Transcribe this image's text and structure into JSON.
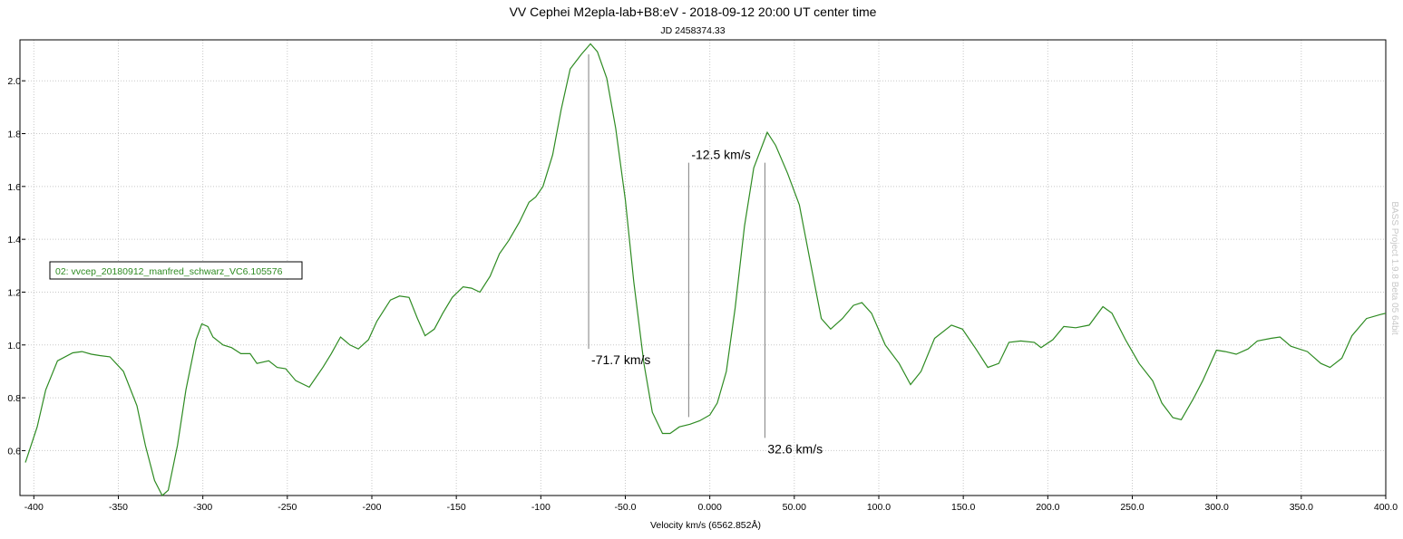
{
  "chart_data": {
    "type": "line",
    "title": "VV Cephei M2epla-lab+B8:eV - 2018-09-12 20:00 UT center time",
    "subtitle": "JD 2458374.33",
    "x_label": "Velocity km/s (6562.852Å)",
    "watermark": "BASS Project 1.9.8 Beta 05 64bit",
    "xlim": [
      -405,
      400
    ],
    "ylim": [
      0.43,
      2.155
    ],
    "xticks": [
      -400,
      -350,
      -300,
      -250,
      -200,
      -150,
      -100,
      {
        "value": -50,
        "label": "-50.0"
      },
      {
        "value": 0,
        "label": "0.000"
      },
      {
        "value": 50,
        "label": "50.00"
      },
      {
        "value": 100,
        "label": "100.0"
      },
      {
        "value": 150,
        "label": "150.0"
      },
      {
        "value": 200,
        "label": "200.0"
      },
      {
        "value": 250,
        "label": "250.0"
      },
      {
        "value": 300,
        "label": "300.0"
      },
      {
        "value": 350,
        "label": "350.0"
      },
      {
        "value": 400,
        "label": "400.0"
      }
    ],
    "yticks": [
      0.6,
      0.8,
      {
        "value": 1.0,
        "label": "1.0"
      },
      1.2,
      1.4,
      1.6,
      1.8,
      {
        "value": 2.0,
        "label": "2.0"
      }
    ],
    "grid": true,
    "legend": "left",
    "x": [
      -405,
      -398,
      -393,
      -386,
      -377,
      -371.5,
      -366,
      -361,
      -355,
      -347,
      -339,
      -334,
      -328.6,
      -324,
      -320.5,
      -315,
      -310,
      -304,
      -300.6,
      -297,
      -294,
      -288,
      -283,
      -277.5,
      -272,
      -268,
      -261,
      -256,
      -251,
      -245,
      -237,
      -229,
      -224,
      -218.5,
      -213,
      -208,
      -202,
      -197,
      -189,
      -183.6,
      -178,
      -173,
      -168.5,
      -163,
      -158,
      -152.4,
      -146,
      -141,
      -136,
      -130,
      -124.5,
      -119,
      -112.7,
      -107,
      -103,
      -98.7,
      -93,
      -88,
      -82.6,
      -76,
      -70.6,
      -66.5,
      -61,
      -55.7,
      -50,
      -45,
      -39,
      -34,
      -28,
      -23.5,
      -18,
      -11.7,
      -6,
      0,
      4.4,
      9.8,
      15,
      20.5,
      26,
      34,
      39,
      46,
      53,
      59,
      66,
      71.5,
      78.5,
      85,
      90,
      95.7,
      103.8,
      112,
      118.8,
      125,
      133,
      143,
      149.5,
      157.5,
      164.5,
      171,
      177,
      184,
      192,
      196,
      203,
      209.5,
      216.5,
      224.5,
      232.6,
      238,
      246,
      254,
      262,
      267.5,
      274,
      279,
      286,
      291.7,
      299.8,
      305,
      311.5,
      318.5,
      324,
      332,
      337.4,
      343.8,
      353.6,
      361.6,
      367,
      374,
      380,
      388.6,
      396.6,
      400
    ],
    "series": [
      {
        "name": "02: vvcep_20180912_manfred_schwarz_VC6.105576",
        "color": "#2e8b22",
        "values": [
          0.555,
          0.69,
          0.83,
          0.94,
          0.97,
          0.975,
          0.965,
          0.96,
          0.955,
          0.9,
          0.77,
          0.62,
          0.487,
          0.43,
          0.45,
          0.62,
          0.83,
          1.02,
          1.08,
          1.07,
          1.03,
          1.0,
          0.99,
          0.967,
          0.967,
          0.93,
          0.94,
          0.915,
          0.91,
          0.865,
          0.84,
          0.915,
          0.967,
          1.03,
          1.0,
          0.985,
          1.02,
          1.09,
          1.17,
          1.185,
          1.18,
          1.1,
          1.035,
          1.06,
          1.12,
          1.18,
          1.22,
          1.215,
          1.2,
          1.26,
          1.345,
          1.395,
          1.465,
          1.54,
          1.56,
          1.6,
          1.72,
          1.89,
          2.045,
          2.1,
          2.14,
          2.11,
          2.01,
          1.82,
          1.55,
          1.24,
          0.93,
          0.745,
          0.665,
          0.665,
          0.69,
          0.7,
          0.713,
          0.735,
          0.78,
          0.9,
          1.14,
          1.45,
          1.67,
          1.805,
          1.755,
          1.65,
          1.53,
          1.33,
          1.1,
          1.06,
          1.1,
          1.15,
          1.16,
          1.12,
          1.0,
          0.93,
          0.85,
          0.9,
          1.025,
          1.075,
          1.06,
          0.985,
          0.915,
          0.93,
          1.01,
          1.015,
          1.01,
          0.99,
          1.02,
          1.07,
          1.065,
          1.075,
          1.145,
          1.12,
          1.02,
          0.93,
          0.865,
          0.78,
          0.725,
          0.717,
          0.795,
          0.865,
          0.98,
          0.975,
          0.965,
          0.985,
          1.015,
          1.025,
          1.03,
          0.995,
          0.975,
          0.93,
          0.915,
          0.95,
          1.035,
          1.1,
          1.115,
          1.12
        ]
      }
    ],
    "annotations": [
      {
        "text": "-71.7 km/s",
        "x": -71.7,
        "y_range": [
          2.1,
          0.985
        ]
      },
      {
        "text": "-12.5 km/s",
        "x": -12.5,
        "y_range": [
          1.69,
          0.727
        ]
      },
      {
        "text": "32.6 km/s",
        "x": 32.6,
        "y_range": [
          1.69,
          0.648
        ]
      }
    ]
  }
}
